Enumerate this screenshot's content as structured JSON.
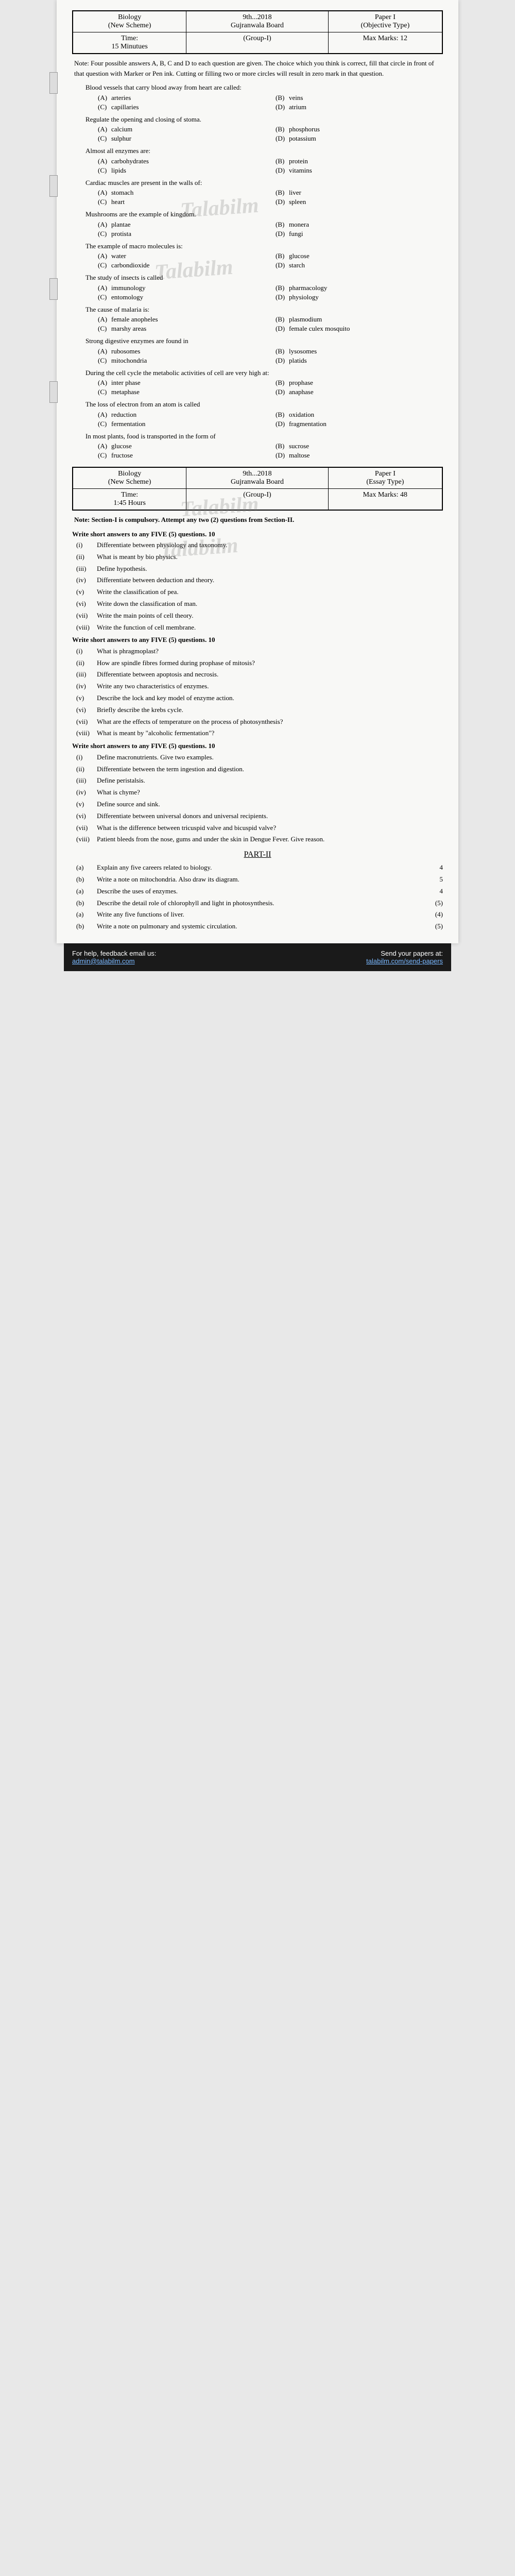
{
  "paper1": {
    "subject": "Biology",
    "scheme": "(New Scheme)",
    "board": "9th...2018\nGujranwala Board",
    "type": "Paper I\n(Objective Type)",
    "time_lbl": "Time:",
    "time_val": "15 Minutues",
    "group": "(Group-I)",
    "marks_lbl": "Max Marks:",
    "marks_val": "12"
  },
  "note1": "Note: Four possible answers A, B, C and D to each question are given. The choice which you think is correct, fill that circle in front of that question with Marker or Pen ink. Cutting or filling two or more circles will result in zero mark in that question.",
  "mcq": [
    {
      "stem": "Blood vessels that carry blood away from heart are called:",
      "opts": [
        "arteries",
        "veins",
        "capillaries",
        "atrium"
      ]
    },
    {
      "stem": "Regulate the opening and closing of stoma.",
      "opts": [
        "calcium",
        "phosphorus",
        "sulphur",
        "potassium"
      ]
    },
    {
      "stem": "Almost all enzymes are:",
      "opts": [
        "carbohydrates",
        "protein",
        "lipids",
        "vitamins"
      ]
    },
    {
      "stem": "Cardiac muscles are present in the walls of:",
      "opts": [
        "stomach",
        "liver",
        "heart",
        "spleen"
      ]
    },
    {
      "stem": "Mushrooms are the example of kingdom.",
      "opts": [
        "plantae",
        "monera",
        "protista",
        "fungi"
      ]
    },
    {
      "stem": "The example of macro molecules is:",
      "opts": [
        "water",
        "glucose",
        "carbondioxide",
        "starch"
      ]
    },
    {
      "stem": "The study of insects is called",
      "opts": [
        "immunology",
        "pharmacology",
        "entomology",
        "physiology"
      ]
    },
    {
      "stem": "The cause of malaria is:",
      "opts": [
        "female anopheles",
        "plasmodium",
        "marshy areas",
        "female culex mosquito"
      ]
    },
    {
      "stem": "Strong digestive enzymes are found in",
      "opts": [
        "rubosomes",
        "lysosomes",
        "mitochondria",
        "platids"
      ]
    },
    {
      "stem": "During the cell cycle the metabolic activities of cell are very high at:",
      "opts": [
        "inter phase",
        "prophase",
        "metaphase",
        "anaphase"
      ]
    },
    {
      "stem": "The loss of electron from an atom is called",
      "opts": [
        "reduction",
        "oxidation",
        "fermentation",
        "fragmentation"
      ]
    },
    {
      "stem": "In most plants, food is transported in the form of",
      "opts": [
        "glucose",
        "sucrose",
        "fructose",
        "maltose"
      ]
    }
  ],
  "letters": [
    "(A)",
    "(B)",
    "(C)",
    "(D)"
  ],
  "paper2": {
    "subject": "Biology",
    "scheme": "(New Scheme)",
    "board": "9th...2018\nGujranwala Board",
    "type": "Paper I\n(Essay Type)",
    "time_lbl": "Time:",
    "time_val": "1:45 Hours",
    "group": "(Group-I)",
    "marks_lbl": "Max Marks:",
    "marks_val": "48"
  },
  "note2": "Note: Section-I is compulsory. Attempt any two (2) questions from Section-II.",
  "sa_head1": "Write short answers to any FIVE (5) questions.    10",
  "sa1": [
    "Differentiate between physiology and taxonomy.",
    "What is meant by bio physics.",
    "Define hypothesis.",
    "Differentiate between deduction and theory.",
    "Write the classification of pea.",
    "Write down the classification of man.",
    "Write the main points of cell theory.",
    "Write the function of cell membrane."
  ],
  "sa_head2": "Write short answers to any FIVE (5) questions.  10",
  "sa2": [
    "What is phragmoplast?",
    "How are spindle fibres formed during prophase of mitosis?",
    "Differentiate between apoptosis and necrosis.",
    "Write any two characteristics of enzymes.",
    "Describe the lock and key model of enzyme action.",
    "Briefly describe the krebs cycle.",
    "What are the effects of temperature on the process of photosynthesis?",
    "What is meant by \"alcoholic fermentation\"?"
  ],
  "sa_head3": "Write short answers to any FIVE (5) questions.  10",
  "sa3": [
    "Define macronutrients. Give two examples.",
    "Differentiate between the term ingestion and digestion.",
    "Define peristalsis.",
    "What is chyme?",
    "Define source and sink.",
    "Differentiate between universal donors and universal recipients.",
    "What is the difference between tricuspid valve and bicuspid valve?",
    "Patient bleeds from the nose, gums and under the skin in Dengue Fever. Give reason."
  ],
  "partII": "PART-II",
  "long": [
    {
      "a": "Explain any five careers related to biology.",
      "am": "4",
      "b": "Write a note on mitochondria. Also draw its diagram.",
      "bm": "5"
    },
    {
      "a": "Describe the uses of enzymes.",
      "am": "4",
      "b": "Describe the detail role of chlorophyll and light in photosynthesis.",
      "bm": "(5)"
    },
    {
      "a": "Write any five functions of liver.",
      "am": "(4)",
      "b": "Write a note on pulmonary and systemic circulation.",
      "bm": "(5)"
    }
  ],
  "wm1": "Talabilm",
  "footer": {
    "help_lbl": "For help, feedback email us:",
    "email": "admin@talabilm.com",
    "send_lbl": "Send your papers at:",
    "send_url": "talabilm.com/send-papers"
  },
  "roman": [
    "(i)",
    "(ii)",
    "(iii)",
    "(iv)",
    "(v)",
    "(vi)",
    "(vii)",
    "(viii)"
  ],
  "roman2": [
    "(i)",
    "(ii)",
    "(iii)",
    "(iv)",
    "(v)",
    "(vi)",
    "(vii)",
    "(viii)"
  ],
  "romanLong": [
    "(a)",
    "(b)"
  ]
}
